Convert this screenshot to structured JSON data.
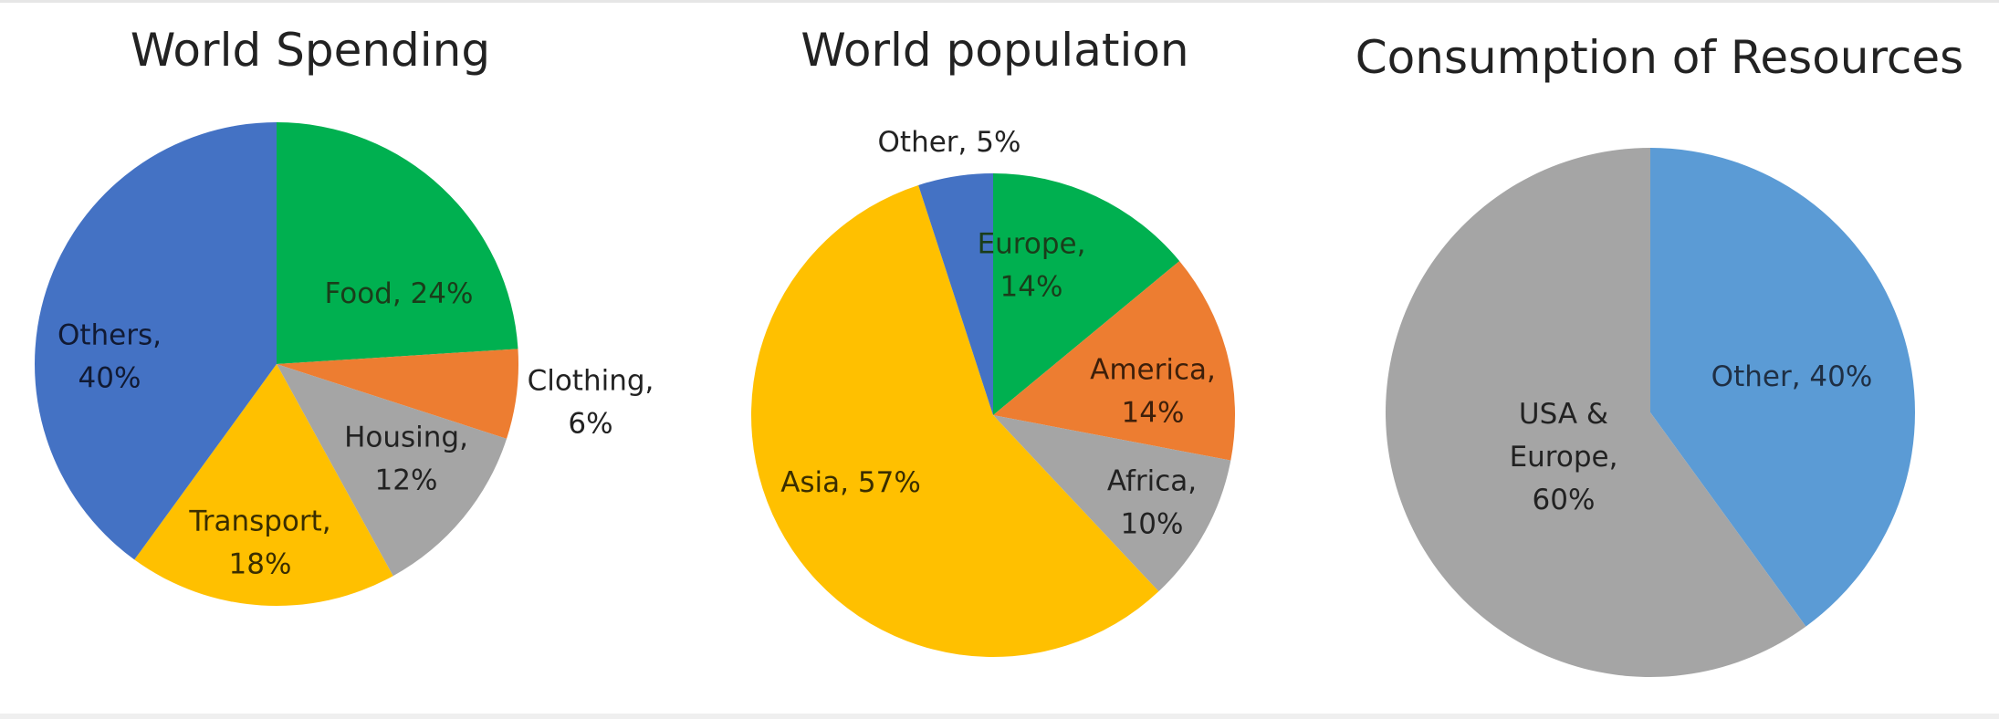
{
  "chart_data": [
    {
      "type": "pie",
      "title": "World Spending",
      "slices": [
        {
          "label": "Food",
          "value": 24,
          "color": "#00B050",
          "label_lines": [
            "Food, 24%"
          ],
          "label_color": "#1a3d1a"
        },
        {
          "label": "Clothing",
          "value": 6,
          "color": "#ED7D31",
          "label_lines": [
            "Clothing,",
            "6%"
          ],
          "label_color": "#222222"
        },
        {
          "label": "Housing",
          "value": 12,
          "color": "#A5A5A5",
          "label_lines": [
            "Housing,",
            "12%"
          ],
          "label_color": "#222222"
        },
        {
          "label": "Transport",
          "value": 18,
          "color": "#FFC000",
          "label_lines": [
            "Transport,",
            "18%"
          ],
          "label_color": "#3a2e00"
        },
        {
          "label": "Others",
          "value": 40,
          "color": "#4472C4",
          "label_lines": [
            "Others,",
            "40%"
          ],
          "label_color": "#111a33"
        }
      ]
    },
    {
      "type": "pie",
      "title": "World population",
      "slices": [
        {
          "label": "Europe",
          "value": 14,
          "color": "#00B050",
          "label_lines": [
            "Europe,",
            "14%"
          ],
          "label_color": "#1a3d1a"
        },
        {
          "label": "America",
          "value": 14,
          "color": "#ED7D31",
          "label_lines": [
            "America,",
            "14%"
          ],
          "label_color": "#3d1f0a"
        },
        {
          "label": "Africa",
          "value": 10,
          "color": "#A5A5A5",
          "label_lines": [
            "Africa,",
            "10%"
          ],
          "label_color": "#222222"
        },
        {
          "label": "Asia",
          "value": 57,
          "color": "#FFC000",
          "label_lines": [
            "Asia, 57%"
          ],
          "label_color": "#3a2e00"
        },
        {
          "label": "Other",
          "value": 5,
          "color": "#4472C4",
          "label_lines": [
            "Other, 5%"
          ],
          "label_color": "#222222"
        }
      ]
    },
    {
      "type": "pie",
      "title": "Consumption of Resources",
      "slices": [
        {
          "label": "Other",
          "value": 40,
          "color": "#5B9BD5",
          "label_lines": [
            "Other, 40%"
          ],
          "label_color": "#1f2f44"
        },
        {
          "label": "USA & Europe",
          "value": 60,
          "color": "#A5A5A5",
          "label_lines": [
            "USA &",
            "Europe,",
            "60%"
          ],
          "label_color": "#222222"
        }
      ]
    }
  ]
}
